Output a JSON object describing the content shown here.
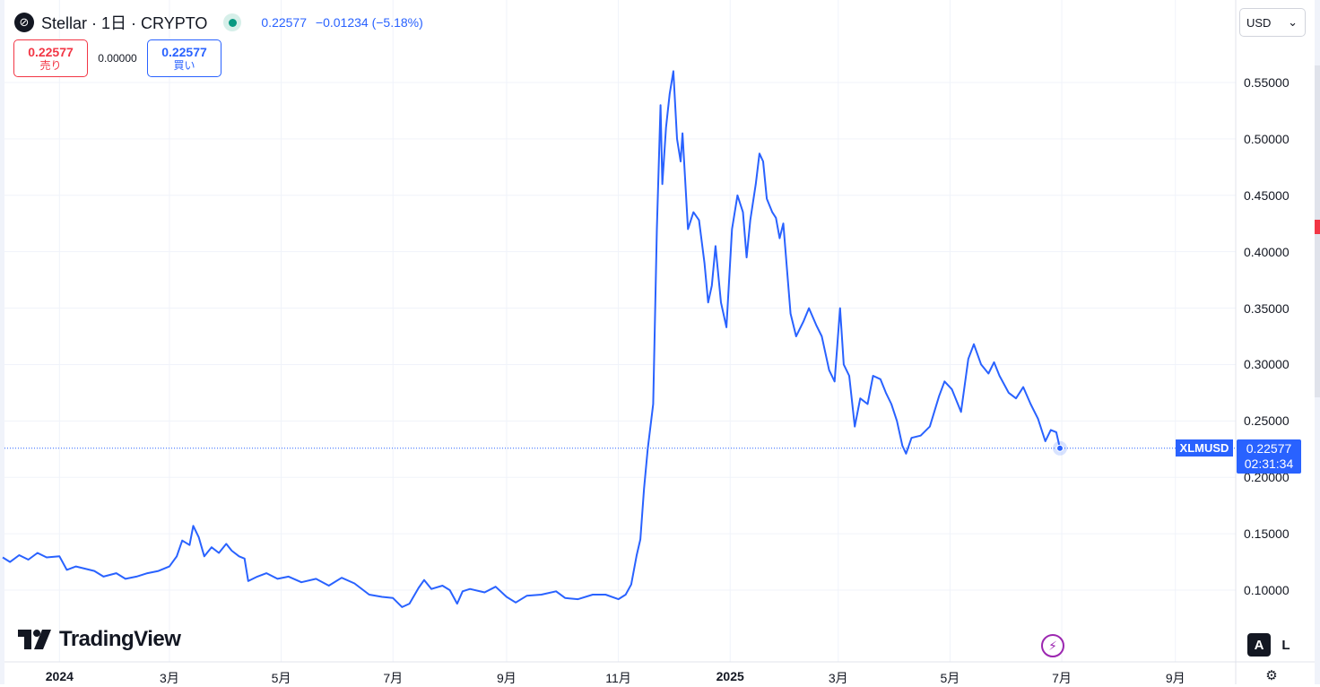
{
  "header": {
    "logo_glyph": "⊘",
    "title": "Stellar · 1日 · CRYPTO",
    "last": "0.22577",
    "change": "−0.01234",
    "change_pct": "(−5.18%)"
  },
  "trade": {
    "sell_price": "0.22577",
    "sell_label": "売り",
    "spread": "0.00000",
    "buy_price": "0.22577",
    "buy_label": "買い"
  },
  "currency": {
    "selected": "USD",
    "chevron": "⌄"
  },
  "price_axis": {
    "ticks": [
      {
        "value": 0.55,
        "label": "0.55000"
      },
      {
        "value": 0.5,
        "label": "0.50000"
      },
      {
        "value": 0.45,
        "label": "0.45000"
      },
      {
        "value": 0.4,
        "label": "0.40000"
      },
      {
        "value": 0.35,
        "label": "0.35000"
      },
      {
        "value": 0.3,
        "label": "0.30000"
      },
      {
        "value": 0.25,
        "label": "0.25000"
      },
      {
        "value": 0.2,
        "label": "0.20000"
      },
      {
        "value": 0.15,
        "label": "0.15000"
      },
      {
        "value": 0.1,
        "label": "0.10000"
      }
    ]
  },
  "time_axis": {
    "ticks": [
      {
        "date": "2024-01-01",
        "label": "2024",
        "bold": true
      },
      {
        "date": "2024-03-01",
        "label": "3月",
        "bold": false
      },
      {
        "date": "2024-05-01",
        "label": "5月",
        "bold": false
      },
      {
        "date": "2024-07-01",
        "label": "7月",
        "bold": false
      },
      {
        "date": "2024-09-01",
        "label": "9月",
        "bold": false
      },
      {
        "date": "2024-11-01",
        "label": "11月",
        "bold": false
      },
      {
        "date": "2025-01-01",
        "label": "2025",
        "bold": true
      },
      {
        "date": "2025-03-01",
        "label": "3月",
        "bold": false
      },
      {
        "date": "2025-05-01",
        "label": "5月",
        "bold": false
      },
      {
        "date": "2025-07-01",
        "label": "7月",
        "bold": false
      },
      {
        "date": "2025-09-01",
        "label": "9月",
        "bold": false
      }
    ]
  },
  "last_price_label": {
    "symbol": "XLMUSD",
    "price": "0.22577",
    "countdown": "02:31:34"
  },
  "branding": {
    "name": "TradingView"
  },
  "controls": {
    "bolt_glyph": "⚡",
    "auto": "A",
    "log": "L",
    "settings_glyph": "⚙"
  },
  "colors": {
    "line": "#2962ff",
    "down": "#f23645",
    "up": "#089981",
    "grid": "#f0f3fa",
    "text": "#131722"
  },
  "chart_data": {
    "type": "line",
    "title": "Stellar · 1日 · CRYPTO",
    "xlabel": "",
    "ylabel": "",
    "x_range": [
      "2023-12-01",
      "2025-09-30"
    ],
    "ylim": [
      0.06,
      0.595
    ],
    "grid": true,
    "series": [
      {
        "name": "XLMUSD",
        "points": [
          [
            "2023-12-01",
            0.129
          ],
          [
            "2023-12-05",
            0.125
          ],
          [
            "2023-12-10",
            0.131
          ],
          [
            "2023-12-15",
            0.127
          ],
          [
            "2023-12-20",
            0.133
          ],
          [
            "2023-12-25",
            0.129
          ],
          [
            "2024-01-01",
            0.13
          ],
          [
            "2024-01-05",
            0.118
          ],
          [
            "2024-01-10",
            0.121
          ],
          [
            "2024-01-15",
            0.119
          ],
          [
            "2024-01-20",
            0.117
          ],
          [
            "2024-01-25",
            0.112
          ],
          [
            "2024-02-01",
            0.115
          ],
          [
            "2024-02-06",
            0.11
          ],
          [
            "2024-02-12",
            0.112
          ],
          [
            "2024-02-18",
            0.115
          ],
          [
            "2024-02-24",
            0.117
          ],
          [
            "2024-03-01",
            0.121
          ],
          [
            "2024-03-05",
            0.13
          ],
          [
            "2024-03-08",
            0.144
          ],
          [
            "2024-03-12",
            0.14
          ],
          [
            "2024-03-14",
            0.157
          ],
          [
            "2024-03-17",
            0.147
          ],
          [
            "2024-03-20",
            0.13
          ],
          [
            "2024-03-24",
            0.138
          ],
          [
            "2024-03-28",
            0.133
          ],
          [
            "2024-04-01",
            0.141
          ],
          [
            "2024-04-04",
            0.135
          ],
          [
            "2024-04-08",
            0.13
          ],
          [
            "2024-04-11",
            0.128
          ],
          [
            "2024-04-13",
            0.108
          ],
          [
            "2024-04-18",
            0.112
          ],
          [
            "2024-04-23",
            0.115
          ],
          [
            "2024-04-29",
            0.11
          ],
          [
            "2024-05-05",
            0.112
          ],
          [
            "2024-05-12",
            0.107
          ],
          [
            "2024-05-20",
            0.11
          ],
          [
            "2024-05-27",
            0.104
          ],
          [
            "2024-06-03",
            0.111
          ],
          [
            "2024-06-10",
            0.106
          ],
          [
            "2024-06-18",
            0.096
          ],
          [
            "2024-06-25",
            0.094
          ],
          [
            "2024-07-01",
            0.093
          ],
          [
            "2024-07-06",
            0.085
          ],
          [
            "2024-07-10",
            0.088
          ],
          [
            "2024-07-15",
            0.102
          ],
          [
            "2024-07-18",
            0.109
          ],
          [
            "2024-07-22",
            0.101
          ],
          [
            "2024-07-28",
            0.104
          ],
          [
            "2024-08-01",
            0.1
          ],
          [
            "2024-08-05",
            0.088
          ],
          [
            "2024-08-08",
            0.099
          ],
          [
            "2024-08-12",
            0.101
          ],
          [
            "2024-08-20",
            0.098
          ],
          [
            "2024-08-26",
            0.103
          ],
          [
            "2024-09-01",
            0.094
          ],
          [
            "2024-09-06",
            0.089
          ],
          [
            "2024-09-12",
            0.095
          ],
          [
            "2024-09-20",
            0.096
          ],
          [
            "2024-09-28",
            0.099
          ],
          [
            "2024-10-03",
            0.093
          ],
          [
            "2024-10-10",
            0.092
          ],
          [
            "2024-10-18",
            0.096
          ],
          [
            "2024-10-25",
            0.096
          ],
          [
            "2024-11-01",
            0.092
          ],
          [
            "2024-11-05",
            0.096
          ],
          [
            "2024-11-08",
            0.105
          ],
          [
            "2024-11-11",
            0.131
          ],
          [
            "2024-11-13",
            0.145
          ],
          [
            "2024-11-15",
            0.19
          ],
          [
            "2024-11-17",
            0.225
          ],
          [
            "2024-11-20",
            0.265
          ],
          [
            "2024-11-22",
            0.42
          ],
          [
            "2024-11-24",
            0.53
          ],
          [
            "2024-11-25",
            0.46
          ],
          [
            "2024-11-27",
            0.51
          ],
          [
            "2024-11-29",
            0.54
          ],
          [
            "2024-12-01",
            0.56
          ],
          [
            "2024-12-03",
            0.5
          ],
          [
            "2024-12-05",
            0.48
          ],
          [
            "2024-12-06",
            0.505
          ],
          [
            "2024-12-09",
            0.42
          ],
          [
            "2024-12-12",
            0.435
          ],
          [
            "2024-12-15",
            0.428
          ],
          [
            "2024-12-18",
            0.39
          ],
          [
            "2024-12-20",
            0.355
          ],
          [
            "2024-12-22",
            0.37
          ],
          [
            "2024-12-24",
            0.405
          ],
          [
            "2024-12-27",
            0.355
          ],
          [
            "2024-12-30",
            0.333
          ],
          [
            "2025-01-02",
            0.42
          ],
          [
            "2025-01-05",
            0.45
          ],
          [
            "2025-01-08",
            0.435
          ],
          [
            "2025-01-10",
            0.395
          ],
          [
            "2025-01-12",
            0.428
          ],
          [
            "2025-01-15",
            0.46
          ],
          [
            "2025-01-17",
            0.487
          ],
          [
            "2025-01-19",
            0.48
          ],
          [
            "2025-01-21",
            0.447
          ],
          [
            "2025-01-24",
            0.435
          ],
          [
            "2025-01-26",
            0.43
          ],
          [
            "2025-01-28",
            0.412
          ],
          [
            "2025-01-30",
            0.425
          ],
          [
            "2025-02-03",
            0.345
          ],
          [
            "2025-02-06",
            0.325
          ],
          [
            "2025-02-10",
            0.338
          ],
          [
            "2025-02-13",
            0.35
          ],
          [
            "2025-02-17",
            0.335
          ],
          [
            "2025-02-20",
            0.325
          ],
          [
            "2025-02-24",
            0.295
          ],
          [
            "2025-02-27",
            0.285
          ],
          [
            "2025-03-02",
            0.35
          ],
          [
            "2025-03-04",
            0.3
          ],
          [
            "2025-03-07",
            0.29
          ],
          [
            "2025-03-10",
            0.245
          ],
          [
            "2025-03-13",
            0.27
          ],
          [
            "2025-03-17",
            0.265
          ],
          [
            "2025-03-20",
            0.29
          ],
          [
            "2025-03-24",
            0.287
          ],
          [
            "2025-03-27",
            0.275
          ],
          [
            "2025-03-30",
            0.265
          ],
          [
            "2025-04-02",
            0.25
          ],
          [
            "2025-04-05",
            0.228
          ],
          [
            "2025-04-07",
            0.221
          ],
          [
            "2025-04-10",
            0.235
          ],
          [
            "2025-04-15",
            0.237
          ],
          [
            "2025-04-20",
            0.245
          ],
          [
            "2025-04-25",
            0.272
          ],
          [
            "2025-04-28",
            0.285
          ],
          [
            "2025-05-02",
            0.278
          ],
          [
            "2025-05-07",
            0.258
          ],
          [
            "2025-05-11",
            0.305
          ],
          [
            "2025-05-14",
            0.318
          ],
          [
            "2025-05-18",
            0.3
          ],
          [
            "2025-05-22",
            0.292
          ],
          [
            "2025-05-25",
            0.302
          ],
          [
            "2025-05-28",
            0.29
          ],
          [
            "2025-06-02",
            0.275
          ],
          [
            "2025-06-06",
            0.27
          ],
          [
            "2025-06-10",
            0.28
          ],
          [
            "2025-06-14",
            0.265
          ],
          [
            "2025-06-18",
            0.252
          ],
          [
            "2025-06-22",
            0.232
          ],
          [
            "2025-06-25",
            0.242
          ],
          [
            "2025-06-28",
            0.24
          ],
          [
            "2025-06-30",
            0.22577
          ]
        ]
      }
    ],
    "last_value": 0.22577
  }
}
